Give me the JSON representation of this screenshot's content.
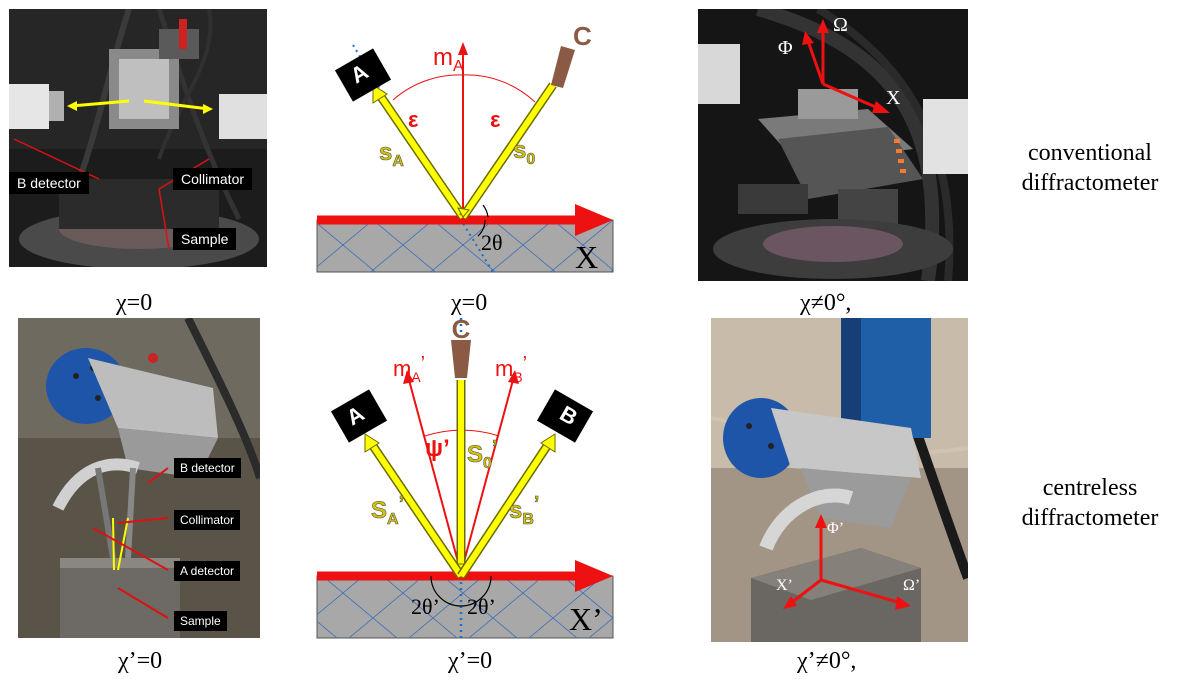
{
  "captions": {
    "top_left": "χ=0",
    "top_mid": "χ=0",
    "top_right": "χ≠0°,",
    "bot_left": "χ’=0",
    "bot_mid": "χ’=0",
    "bot_right": "χ’≠0°,"
  },
  "row_labels": {
    "top_line1": "conventional",
    "top_line2": "diffractometer",
    "bot_line1": "centreless",
    "bot_line2": "diffractometer"
  },
  "photo1_tags": {
    "b_detector": "B detector",
    "collimator": "Collimator",
    "sample": "Sample"
  },
  "photo4_tags": {
    "b_detector": "B detector",
    "collimator": "Collimator",
    "a_detector": "A detector",
    "sample": "Sample"
  },
  "diagram_top": {
    "detector_a": "A",
    "source_c": "C",
    "normal": "m",
    "normal_sub": "A",
    "eps_left": "ε",
    "eps_right": "ε",
    "beam_a": "s",
    "beam_a_sub": "A",
    "beam_0": "s",
    "beam_0_sub": "0",
    "angle": "2θ",
    "axis": "X"
  },
  "diagram_bot": {
    "detector_a": "A",
    "detector_b": "B",
    "source_c": "C",
    "normal_a": "m",
    "normal_a_sub": "A",
    "normal_a_prime": "’",
    "normal_b": "m",
    "normal_b_sub": "B",
    "normal_b_prime": "’",
    "psi": "ψ’",
    "beam_0": "S",
    "beam_0_sub": "0",
    "beam_0_prime": "’",
    "beam_a": "S",
    "beam_a_sub": "A",
    "beam_a_prime": "’",
    "beam_b": "s",
    "beam_b_sub": "B",
    "beam_b_prime": "’",
    "angle_left": "2θ’",
    "angle_right": "2θ’",
    "axis": "X’"
  },
  "photo3_axes": {
    "phi": "Φ",
    "omega": "Ω",
    "chi": "X"
  },
  "photo6_axes": {
    "phi": "Φ’",
    "omega": "Ω’",
    "chi": "X’"
  },
  "colors": {
    "beam": "#ffff00",
    "beam_outline": "#6b6b00",
    "arrow_red": "#ee1111",
    "source_brown": "#8b5a44",
    "sample_grey": "#a8a8a8",
    "blue_dotted": "#1f6fc8"
  }
}
